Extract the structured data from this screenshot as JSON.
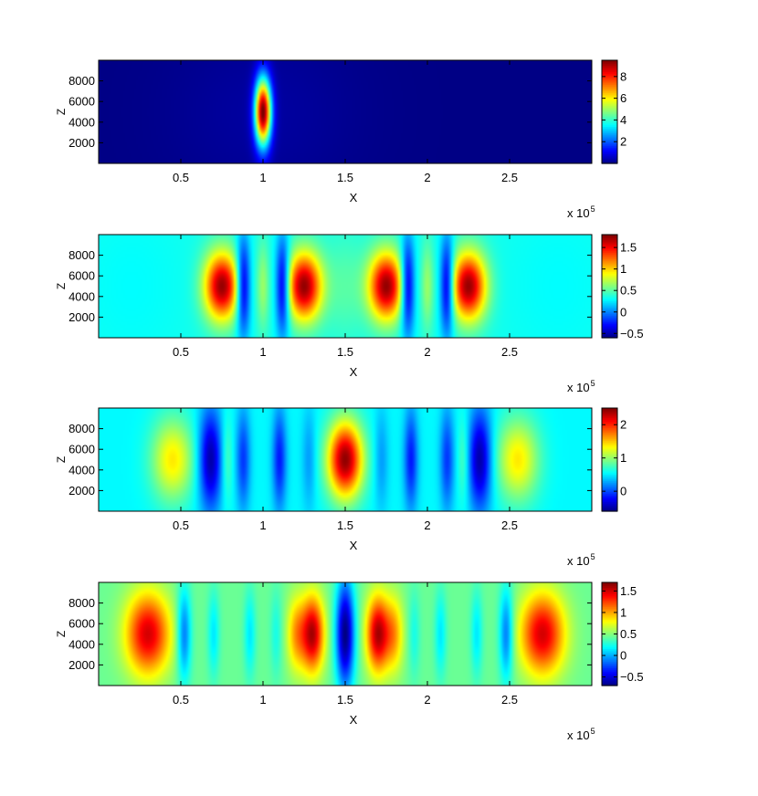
{
  "chart_data": [
    {
      "type": "heatmap",
      "xlabel": "X",
      "ylabel": "Z",
      "x_exponent_label": "x 10",
      "x_exponent_power": "5",
      "xlim": [
        0,
        300000
      ],
      "ylim": [
        0,
        10000
      ],
      "x_ticks": [
        {
          "value": 50000,
          "label": "0.5"
        },
        {
          "value": 100000,
          "label": "1"
        },
        {
          "value": 150000,
          "label": "1.5"
        },
        {
          "value": 200000,
          "label": "2"
        },
        {
          "value": 250000,
          "label": "2.5"
        }
      ],
      "y_ticks": [
        {
          "value": 2000,
          "label": "2000"
        },
        {
          "value": 4000,
          "label": "4000"
        },
        {
          "value": 6000,
          "label": "6000"
        },
        {
          "value": 8000,
          "label": "8000"
        }
      ],
      "clim": [
        0,
        9.5
      ],
      "colorbar_ticks": [
        {
          "value": 2,
          "label": "2"
        },
        {
          "value": 4,
          "label": "4"
        },
        {
          "value": 6,
          "label": "6"
        },
        {
          "value": 8,
          "label": "8"
        }
      ],
      "background_value": 0.05,
      "z_center": 5000,
      "blobs": [
        {
          "x": 100000,
          "sx": 3500,
          "sz": 2300,
          "amp": 9.4
        },
        {
          "x": 100000,
          "sx": 40000,
          "sz": 6000,
          "amp": 0.25
        }
      ]
    },
    {
      "type": "heatmap",
      "xlabel": "X",
      "ylabel": "Z",
      "x_exponent_label": "x 10",
      "x_exponent_power": "5",
      "xlim": [
        0,
        300000
      ],
      "ylim": [
        0,
        10000
      ],
      "x_ticks": [
        {
          "value": 50000,
          "label": "0.5"
        },
        {
          "value": 100000,
          "label": "1"
        },
        {
          "value": 150000,
          "label": "1.5"
        },
        {
          "value": 200000,
          "label": "2"
        },
        {
          "value": 250000,
          "label": "2.5"
        }
      ],
      "y_ticks": [
        {
          "value": 2000,
          "label": "2000"
        },
        {
          "value": 4000,
          "label": "4000"
        },
        {
          "value": 6000,
          "label": "6000"
        },
        {
          "value": 8000,
          "label": "8000"
        }
      ],
      "clim": [
        -0.6,
        1.8
      ],
      "colorbar_ticks": [
        {
          "value": -0.5,
          "label": "−0.5"
        },
        {
          "value": 0,
          "label": "0"
        },
        {
          "value": 0.5,
          "label": "0.5"
        },
        {
          "value": 1,
          "label": "1"
        },
        {
          "value": 1.5,
          "label": "1.5"
        }
      ],
      "background_value": 0.35,
      "z_center": 5000,
      "blobs": [
        {
          "x": 75000,
          "sx": 7500,
          "sz": 2300,
          "amp": 1.4
        },
        {
          "x": 125000,
          "sx": 7500,
          "sz": 2300,
          "amp": 1.4
        },
        {
          "x": 175000,
          "sx": 7500,
          "sz": 2300,
          "amp": 1.4
        },
        {
          "x": 225000,
          "sx": 7500,
          "sz": 2300,
          "amp": 1.4
        },
        {
          "x": 88000,
          "sx": 3000,
          "sz": 3200,
          "amp": -0.9
        },
        {
          "x": 112000,
          "sx": 3000,
          "sz": 3200,
          "amp": -0.9
        },
        {
          "x": 188000,
          "sx": 3000,
          "sz": 3200,
          "amp": -0.9
        },
        {
          "x": 212000,
          "sx": 3000,
          "sz": 3200,
          "amp": -0.9
        },
        {
          "x": 100000,
          "sx": 2500,
          "sz": 3000,
          "amp": 0.3
        },
        {
          "x": 200000,
          "sx": 2500,
          "sz": 3000,
          "amp": 0.3
        },
        {
          "x": 150000,
          "sx": 9000,
          "sz": 3500,
          "amp": 0.15
        },
        {
          "x": 20000,
          "sx": 25000,
          "sz": 6000,
          "amp": -0.05
        },
        {
          "x": 280000,
          "sx": 25000,
          "sz": 6000,
          "amp": -0.05
        }
      ]
    },
    {
      "type": "heatmap",
      "xlabel": "X",
      "ylabel": "Z",
      "x_exponent_label": "x 10",
      "x_exponent_power": "5",
      "xlim": [
        0,
        300000
      ],
      "ylim": [
        0,
        10000
      ],
      "x_ticks": [
        {
          "value": 50000,
          "label": "0.5"
        },
        {
          "value": 100000,
          "label": "1"
        },
        {
          "value": 150000,
          "label": "1.5"
        },
        {
          "value": 200000,
          "label": "2"
        },
        {
          "value": 250000,
          "label": "2.5"
        }
      ],
      "y_ticks": [
        {
          "value": 2000,
          "label": "2000"
        },
        {
          "value": 4000,
          "label": "4000"
        },
        {
          "value": 6000,
          "label": "6000"
        },
        {
          "value": 8000,
          "label": "8000"
        }
      ],
      "clim": [
        -0.6,
        2.5
      ],
      "colorbar_ticks": [
        {
          "value": 0,
          "label": "0"
        },
        {
          "value": 1,
          "label": "1"
        },
        {
          "value": 2,
          "label": "2"
        }
      ],
      "background_value": 0.55,
      "z_center": 5000,
      "blobs": [
        {
          "x": 150000,
          "sx": 7500,
          "sz": 2600,
          "amp": 1.9
        },
        {
          "x": 45000,
          "sx": 9000,
          "sz": 2800,
          "amp": 0.85
        },
        {
          "x": 255000,
          "sx": 9000,
          "sz": 2800,
          "amp": 0.85
        },
        {
          "x": 68000,
          "sx": 5000,
          "sz": 3500,
          "amp": -1.05
        },
        {
          "x": 232000,
          "sx": 5000,
          "sz": 3500,
          "amp": -1.05
        },
        {
          "x": 88000,
          "sx": 3000,
          "sz": 3500,
          "amp": -0.6
        },
        {
          "x": 212000,
          "sx": 3000,
          "sz": 3500,
          "amp": -0.6
        },
        {
          "x": 110000,
          "sx": 3000,
          "sz": 3500,
          "amp": -0.7
        },
        {
          "x": 190000,
          "sx": 3000,
          "sz": 3500,
          "amp": -0.7
        },
        {
          "x": 128000,
          "sx": 3000,
          "sz": 3500,
          "amp": -0.3
        },
        {
          "x": 172000,
          "sx": 3000,
          "sz": 3500,
          "amp": -0.3
        },
        {
          "x": 78000,
          "sx": 2500,
          "sz": 3000,
          "amp": 0.3
        },
        {
          "x": 222000,
          "sx": 2500,
          "sz": 3000,
          "amp": 0.3
        }
      ]
    },
    {
      "type": "heatmap",
      "xlabel": "X",
      "ylabel": "Z",
      "x_exponent_label": "x 10",
      "x_exponent_power": "5",
      "xlim": [
        0,
        300000
      ],
      "ylim": [
        0,
        10000
      ],
      "x_ticks": [
        {
          "value": 50000,
          "label": "0.5"
        },
        {
          "value": 100000,
          "label": "1"
        },
        {
          "value": 150000,
          "label": "1.5"
        },
        {
          "value": 200000,
          "label": "2"
        },
        {
          "value": 250000,
          "label": "2.5"
        }
      ],
      "y_ticks": [
        {
          "value": 2000,
          "label": "2000"
        },
        {
          "value": 4000,
          "label": "4000"
        },
        {
          "value": 6000,
          "label": "6000"
        },
        {
          "value": 8000,
          "label": "8000"
        }
      ],
      "clim": [
        -0.7,
        1.7
      ],
      "colorbar_ticks": [
        {
          "value": -0.5,
          "label": "−0.5"
        },
        {
          "value": 0,
          "label": "0"
        },
        {
          "value": 0.5,
          "label": "0.5"
        },
        {
          "value": 1,
          "label": "1"
        },
        {
          "value": 1.5,
          "label": "1.5"
        }
      ],
      "background_value": 0.45,
      "z_center": 5000,
      "blobs": [
        {
          "x": 30000,
          "sx": 9500,
          "sz": 2800,
          "amp": 1.05
        },
        {
          "x": 270000,
          "sx": 9500,
          "sz": 2800,
          "amp": 1.05
        },
        {
          "x": 130000,
          "sx": 5000,
          "sz": 2600,
          "amp": 1.15
        },
        {
          "x": 170000,
          "sx": 5000,
          "sz": 2600,
          "amp": 1.15
        },
        {
          "x": 120000,
          "sx": 4000,
          "sz": 2600,
          "amp": 0.5
        },
        {
          "x": 180000,
          "sx": 4000,
          "sz": 2600,
          "amp": 0.5
        },
        {
          "x": 150000,
          "sx": 4000,
          "sz": 3800,
          "amp": -1.15
        },
        {
          "x": 52000,
          "sx": 3000,
          "sz": 3200,
          "amp": -0.6
        },
        {
          "x": 248000,
          "sx": 3000,
          "sz": 3200,
          "amp": -0.6
        },
        {
          "x": 70000,
          "sx": 2500,
          "sz": 3000,
          "amp": -0.3
        },
        {
          "x": 230000,
          "sx": 2500,
          "sz": 3000,
          "amp": -0.3
        },
        {
          "x": 92000,
          "sx": 2500,
          "sz": 3000,
          "amp": -0.3
        },
        {
          "x": 208000,
          "sx": 2500,
          "sz": 3000,
          "amp": -0.3
        },
        {
          "x": 108000,
          "sx": 2500,
          "sz": 3000,
          "amp": -0.2
        },
        {
          "x": 192000,
          "sx": 2500,
          "sz": 3000,
          "amp": -0.2
        }
      ]
    }
  ]
}
